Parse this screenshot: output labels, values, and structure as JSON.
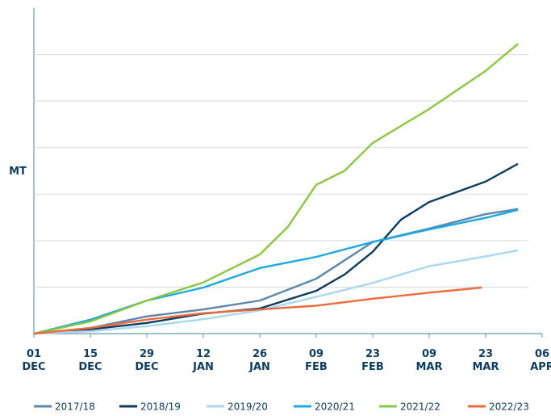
{
  "chart_data": {
    "type": "line",
    "ylabel": "MT",
    "xlim": [
      0,
      126
    ],
    "xticks": [
      {
        "value": 0,
        "label": "01 DEC"
      },
      {
        "value": 14,
        "label": "15 DEC"
      },
      {
        "value": 28,
        "label": "29 DEC"
      },
      {
        "value": 42,
        "label": "12 JAN"
      },
      {
        "value": 56,
        "label": "26 JAN"
      },
      {
        "value": 70,
        "label": "09 FEB"
      },
      {
        "value": 84,
        "label": "23 FEB"
      },
      {
        "value": 98,
        "label": "09 MAR"
      },
      {
        "value": 112,
        "label": "23 MAR"
      },
      {
        "value": 126,
        "label": "06 APR"
      }
    ],
    "ylim": [
      0,
      7
    ],
    "yticks": [
      1,
      2,
      3,
      4,
      5,
      6
    ],
    "grid": true,
    "legend": "bottom",
    "series": [
      {
        "name": "2017/18",
        "color": "#5b87ad",
        "x": [
          0,
          14,
          28,
          42,
          56,
          70,
          84,
          98,
          112,
          120
        ],
        "values": [
          0,
          0.12,
          0.37,
          0.52,
          0.71,
          1.18,
          1.97,
          2.26,
          2.57,
          2.68
        ]
      },
      {
        "name": "2018/19",
        "color": "#0d3c5e",
        "x": [
          0,
          14,
          28,
          42,
          56,
          70,
          77,
          84,
          91,
          98,
          112,
          120
        ],
        "values": [
          0,
          0.09,
          0.23,
          0.43,
          0.54,
          0.92,
          1.27,
          1.76,
          2.45,
          2.83,
          3.27,
          3.65
        ]
      },
      {
        "name": "2019/20",
        "color": "#a7d8f0",
        "x": [
          0,
          14,
          28,
          42,
          56,
          70,
          84,
          98,
          112,
          120
        ],
        "values": [
          0,
          0.05,
          0.16,
          0.31,
          0.5,
          0.79,
          1.09,
          1.45,
          1.66,
          1.79
        ]
      },
      {
        "name": "2020/21",
        "color": "#1ba9e0",
        "x": [
          0,
          14,
          28,
          42,
          56,
          70,
          84,
          98,
          112,
          120
        ],
        "values": [
          0,
          0.3,
          0.71,
          0.99,
          1.41,
          1.65,
          1.97,
          2.24,
          2.49,
          2.66
        ]
      },
      {
        "name": "2021/22",
        "color": "#8dc63f",
        "x": [
          0,
          14,
          28,
          42,
          56,
          63,
          70,
          77,
          84,
          98,
          112,
          120
        ],
        "values": [
          0,
          0.26,
          0.71,
          1.1,
          1.7,
          2.3,
          3.2,
          3.5,
          4.1,
          4.83,
          5.65,
          6.23
        ]
      },
      {
        "name": "2022/23",
        "color": "#ee6a3a",
        "x": [
          0,
          14,
          28,
          42,
          56,
          70,
          84,
          98,
          111
        ],
        "values": [
          0,
          0.12,
          0.3,
          0.44,
          0.52,
          0.6,
          0.75,
          0.88,
          0.99
        ]
      }
    ]
  }
}
